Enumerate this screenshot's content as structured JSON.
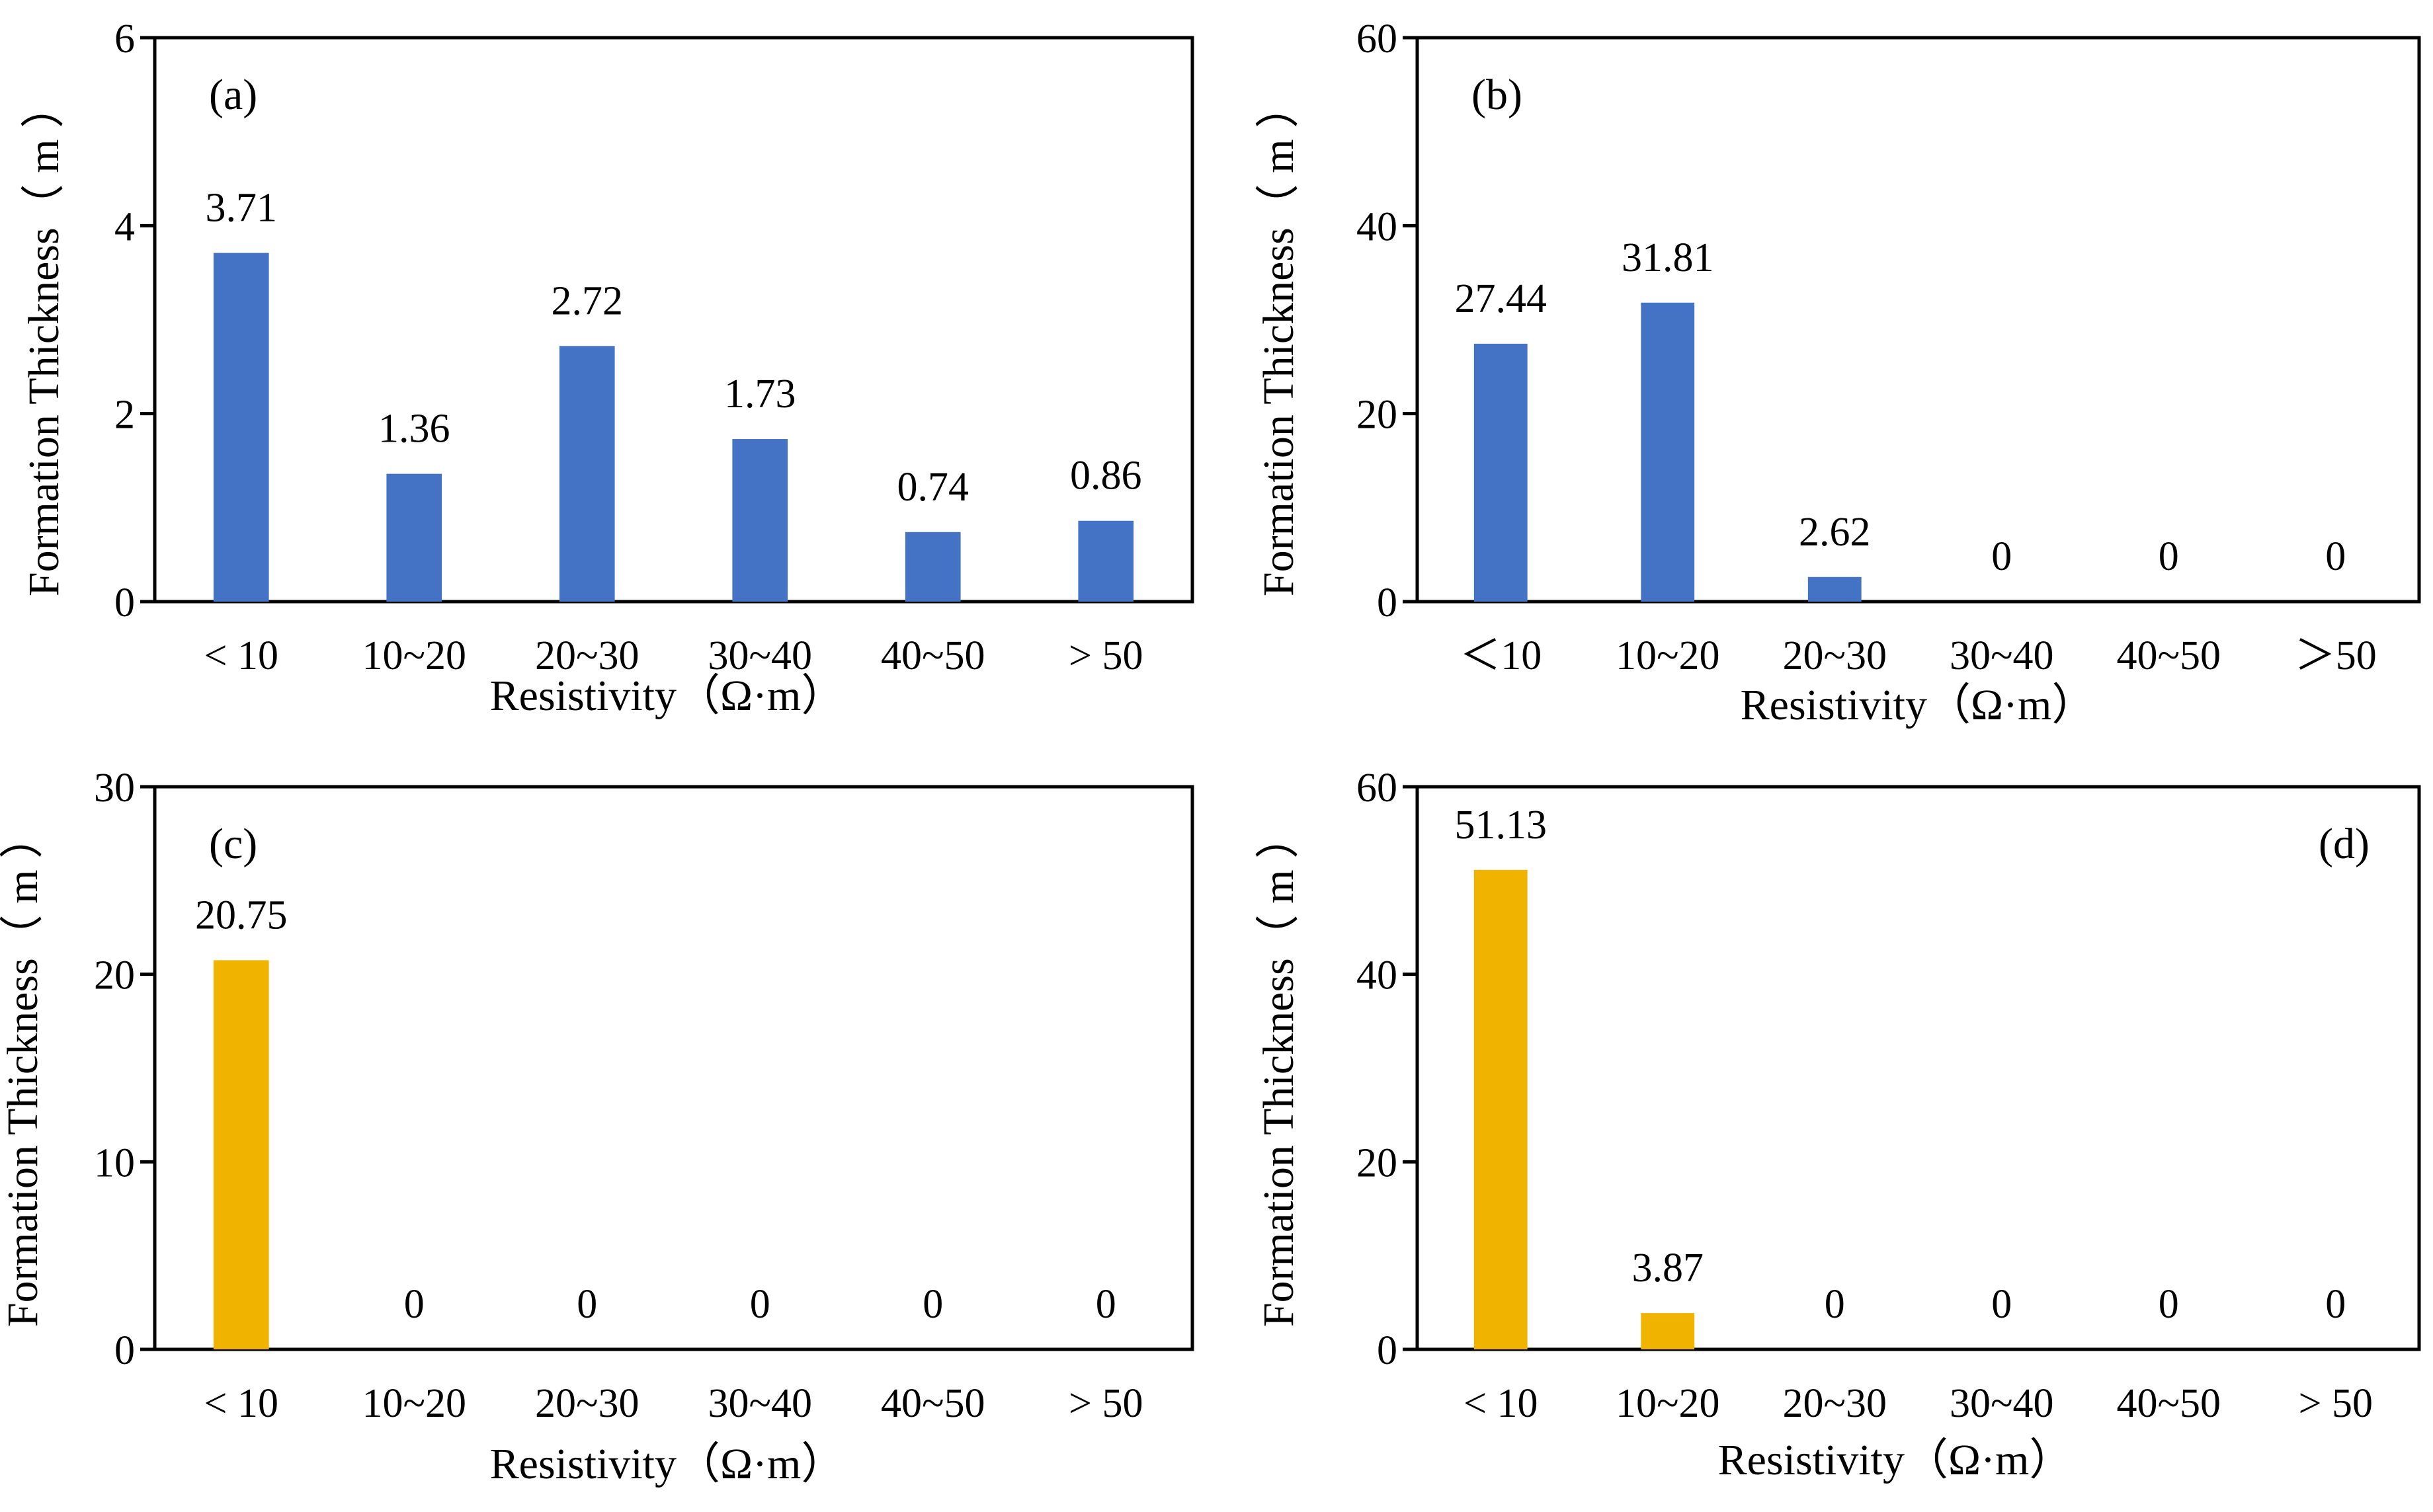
{
  "chart_data": [
    {
      "type": "bar",
      "panel_label": "(a)",
      "categories": [
        "< 10",
        "10~20",
        "20~30",
        "30~40",
        "40~50",
        "> 50"
      ],
      "values": [
        3.71,
        1.36,
        2.72,
        1.73,
        0.74,
        0.86
      ],
      "value_labels": [
        "3.71",
        "1.36",
        "2.72",
        "1.73",
        "0.74",
        "0.86"
      ],
      "xlabel": "Resistivity（Ω·m）",
      "ylabel": "Formation Thickness（ m ）",
      "ylim": [
        0,
        6
      ],
      "yticks": [
        "0",
        "2",
        "4",
        "6"
      ],
      "color": "#4472C4",
      "panel_label_position": "top-left"
    },
    {
      "type": "bar",
      "panel_label": "(b)",
      "categories": [
        "＜10",
        "10~20",
        "20~30",
        "30~40",
        "40~50",
        "＞50"
      ],
      "values": [
        27.44,
        31.81,
        2.62,
        0,
        0,
        0
      ],
      "value_labels": [
        "27.44",
        "31.81",
        "2.62",
        "0",
        "0",
        "0"
      ],
      "xlabel": "Resistivity（Ω·m）",
      "ylabel": "Formation Thickness（ m ）",
      "ylim": [
        0,
        60
      ],
      "yticks": [
        "0",
        "20",
        "40",
        "60"
      ],
      "color": "#4472C4",
      "panel_label_position": "top-left"
    },
    {
      "type": "bar",
      "panel_label": "(c)",
      "categories": [
        "< 10",
        "10~20",
        "20~30",
        "30~40",
        "40~50",
        "> 50"
      ],
      "values": [
        20.75,
        0,
        0,
        0,
        0,
        0
      ],
      "value_labels": [
        "20.75",
        "0",
        "0",
        "0",
        "0",
        "0"
      ],
      "xlabel": "Resistivity（Ω·m）",
      "ylabel": "Formation Thickness（ m ）",
      "ylim": [
        0,
        30
      ],
      "yticks": [
        "0",
        "10",
        "20",
        "30"
      ],
      "color": "#F0B400",
      "panel_label_position": "top-left"
    },
    {
      "type": "bar",
      "panel_label": "(d)",
      "categories": [
        "< 10",
        "10~20",
        "20~30",
        "30~40",
        "40~50",
        "> 50"
      ],
      "values": [
        51.13,
        3.87,
        0,
        0,
        0,
        0
      ],
      "value_labels": [
        "51.13",
        "3.87",
        "0",
        "0",
        "0",
        "0"
      ],
      "xlabel": "Resistivity（Ω·m）",
      "ylabel": "Formation Thickness（ m ）",
      "ylim": [
        0,
        60
      ],
      "yticks": [
        "0",
        "20",
        "40",
        "60"
      ],
      "color": "#F0B400",
      "panel_label_position": "top-right"
    }
  ]
}
